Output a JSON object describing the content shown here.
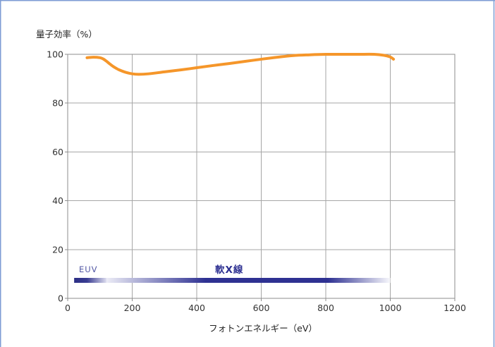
{
  "chart_data": {
    "type": "line",
    "xlabel": "フォトンエネルギー（eV）",
    "ylabel": "量子効率（%）",
    "xlim": [
      0,
      1200
    ],
    "ylim": [
      0,
      100
    ],
    "x_ticks": [
      0,
      200,
      400,
      600,
      800,
      1000,
      1200
    ],
    "y_ticks": [
      0,
      20,
      40,
      60,
      80,
      100
    ],
    "grid": true,
    "legend": false,
    "series": [
      {
        "color": "#f5962a",
        "x": [
          60,
          80,
          100,
          110,
          120,
          130,
          140,
          150,
          160,
          180,
          200,
          220,
          250,
          300,
          350,
          400,
          450,
          500,
          550,
          600,
          650,
          700,
          750,
          800,
          850,
          900,
          950,
          980,
          1000,
          1010
        ],
        "y": [
          98.6,
          98.8,
          98.6,
          98.1,
          97.2,
          96.1,
          95.1,
          94.3,
          93.6,
          92.6,
          92.0,
          91.8,
          92.0,
          92.8,
          93.6,
          94.5,
          95.4,
          96.2,
          97.1,
          98.0,
          98.8,
          99.5,
          99.8,
          100,
          100,
          100,
          100,
          99.6,
          98.9,
          98.0
        ]
      }
    ],
    "bands": [
      {
        "label": "EUV",
        "start": 20,
        "end": 120,
        "color": "#2e3192",
        "label_color": "#5257a4"
      },
      {
        "label": "軟X線",
        "start": 120,
        "end": 1000,
        "color": "#2e3192",
        "label_color": "#2e3192"
      }
    ]
  }
}
